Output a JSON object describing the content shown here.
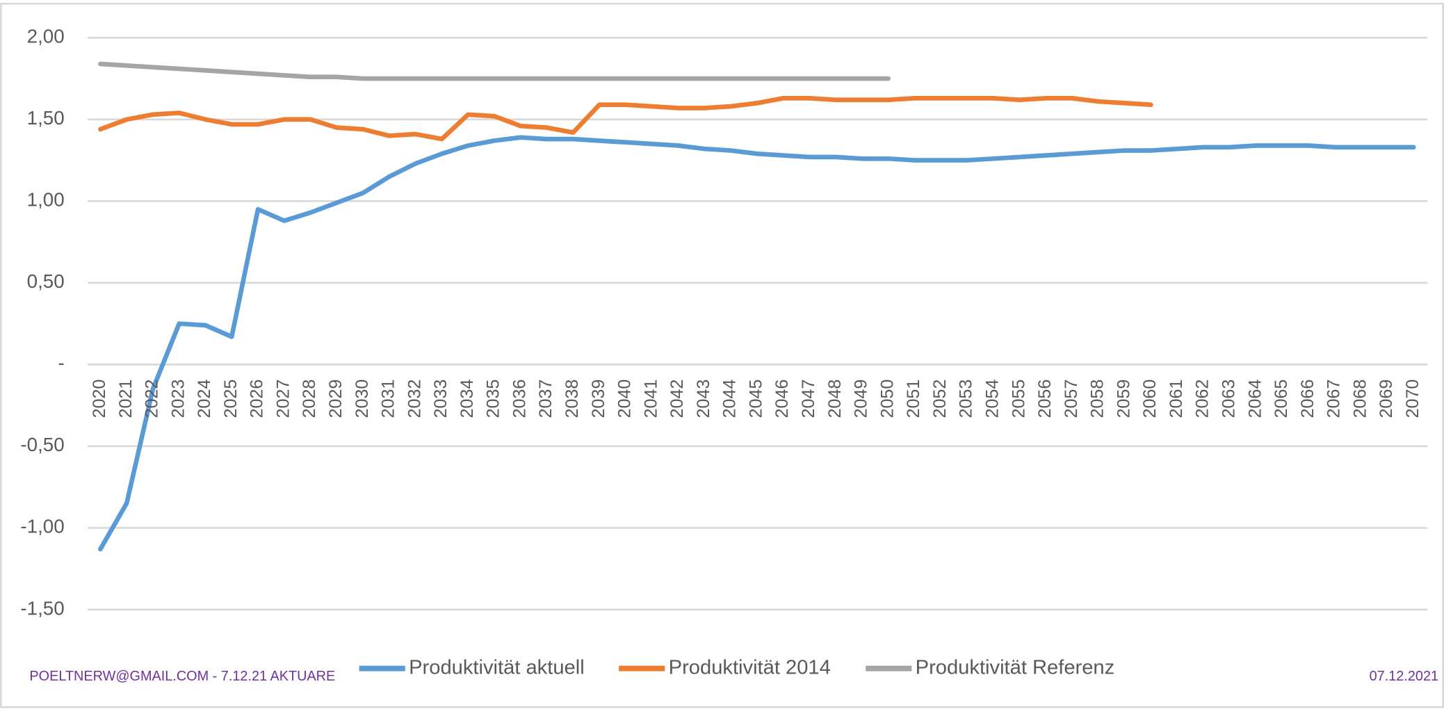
{
  "chart_data": {
    "type": "line",
    "categories": [
      "2020",
      "2021",
      "2022",
      "2023",
      "2024",
      "2025",
      "2026",
      "2027",
      "2028",
      "2029",
      "2030",
      "2031",
      "2032",
      "2033",
      "2034",
      "2035",
      "2036",
      "2037",
      "2038",
      "2039",
      "2040",
      "2041",
      "2042",
      "2043",
      "2044",
      "2045",
      "2046",
      "2047",
      "2048",
      "2049",
      "2050",
      "2051",
      "2052",
      "2053",
      "2054",
      "2055",
      "2056",
      "2057",
      "2058",
      "2059",
      "2060",
      "2061",
      "2062",
      "2063",
      "2064",
      "2065",
      "2066",
      "2067",
      "2068",
      "2069",
      "2070"
    ],
    "series": [
      {
        "name": "Produktivität aktuell",
        "color": "#5b9bd5",
        "values": [
          -1.13,
          -0.85,
          -0.15,
          0.25,
          0.24,
          0.17,
          0.95,
          0.88,
          0.93,
          0.99,
          1.05,
          1.15,
          1.23,
          1.29,
          1.34,
          1.37,
          1.39,
          1.38,
          1.38,
          1.37,
          1.36,
          1.35,
          1.34,
          1.32,
          1.31,
          1.29,
          1.28,
          1.27,
          1.27,
          1.26,
          1.26,
          1.25,
          1.25,
          1.25,
          1.26,
          1.27,
          1.28,
          1.29,
          1.3,
          1.31,
          1.31,
          1.32,
          1.33,
          1.33,
          1.34,
          1.34,
          1.34,
          1.33,
          1.33,
          1.33,
          1.33
        ]
      },
      {
        "name": "Produktivität 2014",
        "color": "#ed7d31",
        "values": [
          1.44,
          1.5,
          1.53,
          1.54,
          1.5,
          1.47,
          1.47,
          1.5,
          1.5,
          1.45,
          1.44,
          1.4,
          1.41,
          1.38,
          1.53,
          1.52,
          1.46,
          1.45,
          1.42,
          1.59,
          1.59,
          1.58,
          1.57,
          1.57,
          1.58,
          1.6,
          1.63,
          1.63,
          1.62,
          1.62,
          1.62,
          1.63,
          1.63,
          1.63,
          1.63,
          1.62,
          1.63,
          1.63,
          1.61,
          1.6,
          1.59,
          null,
          null,
          null,
          null,
          null,
          null,
          null,
          null,
          null,
          null
        ]
      },
      {
        "name": "Produktivität Referenz",
        "color": "#a5a5a5",
        "values": [
          1.84,
          1.83,
          1.82,
          1.81,
          1.8,
          1.79,
          1.78,
          1.77,
          1.76,
          1.76,
          1.75,
          1.75,
          1.75,
          1.75,
          1.75,
          1.75,
          1.75,
          1.75,
          1.75,
          1.75,
          1.75,
          1.75,
          1.75,
          1.75,
          1.75,
          1.75,
          1.75,
          1.75,
          1.75,
          1.75,
          1.75,
          null,
          null,
          null,
          null,
          null,
          null,
          null,
          null,
          null,
          null,
          null,
          null,
          null,
          null,
          null,
          null,
          null,
          null,
          null,
          null
        ]
      }
    ],
    "ylim": [
      -1.5,
      2.0
    ],
    "yticks": [
      {
        "value": -1.5,
        "label": "-1,50"
      },
      {
        "value": -1.0,
        "label": "-1,00"
      },
      {
        "value": -0.5,
        "label": "-0,50"
      },
      {
        "value": 0,
        "label": "-"
      },
      {
        "value": 0.5,
        "label": "0,50"
      },
      {
        "value": 1.0,
        "label": "1,00"
      },
      {
        "value": 1.5,
        "label": "1,50"
      },
      {
        "value": 2.0,
        "label": "2,00"
      }
    ],
    "grid": true,
    "legend": "bottom"
  },
  "footer": {
    "left": "POELTNERW@GMAIL.COM - 7.12.21 AKTUARE",
    "right": "07.12.2021"
  }
}
